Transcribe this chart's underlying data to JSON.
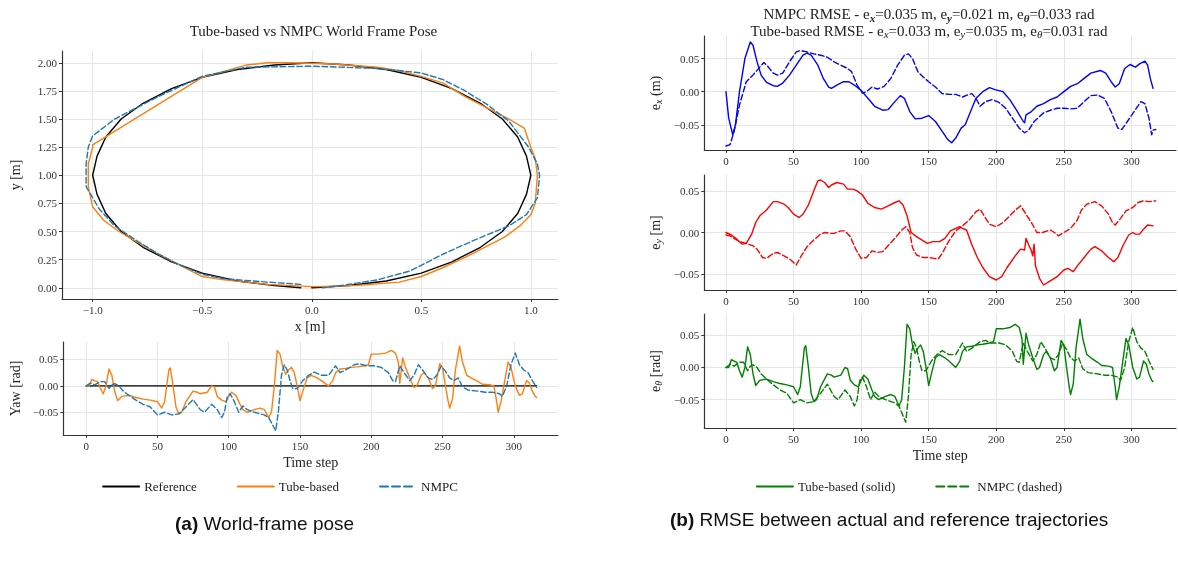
{
  "chart_data": [
    {
      "type": "line",
      "title": "Tube-based vs NMPC World Frame Pose",
      "xlabel": "x [m]",
      "ylabel": "y [m]",
      "marker": "none",
      "grid": true,
      "xlim": [
        -1.14,
        1.124
      ],
      "xticks": [
        {
          "value": -1,
          "label": "−1.0"
        },
        {
          "value": -0.5,
          "label": "−0.5"
        },
        {
          "value": 0,
          "label": "0.0"
        },
        {
          "value": 0.5,
          "label": "0.5"
        },
        {
          "value": 1,
          "label": "1.0"
        }
      ],
      "ylim": [
        -0.1,
        2.105
      ],
      "yticks": [
        {
          "value": 0,
          "label": "0.00"
        },
        {
          "value": 0.25,
          "label": "0.25"
        },
        {
          "value": 0.5,
          "label": "0.50"
        },
        {
          "value": 0.75,
          "label": "0.75"
        },
        {
          "value": 1,
          "label": "1.00"
        },
        {
          "value": 1.25,
          "label": "1.25"
        },
        {
          "value": 1.5,
          "label": "1.50"
        },
        {
          "value": 1.75,
          "label": "1.75"
        },
        {
          "value": 2,
          "label": "2.00"
        }
      ],
      "series": [
        {
          "color": "#000000",
          "line_style": "solid",
          "x": [
            0,
            0.17,
            0.34,
            0.5,
            0.64,
            0.77,
            0.87,
            0.94,
            0.98,
            1,
            0.98,
            0.94,
            0.87,
            0.77,
            0.64,
            0.5,
            0.34,
            0.17,
            0,
            -0.17,
            -0.34,
            -0.5,
            -0.64,
            -0.77,
            -0.87,
            -0.94,
            -0.98,
            -1,
            -0.98,
            -0.94,
            -0.87,
            -0.77,
            -0.64,
            -0.5,
            -0.34,
            -0.17,
            -0.05
          ],
          "values": [
            0,
            0.02,
            0.06,
            0.13,
            0.23,
            0.36,
            0.5,
            0.66,
            0.83,
            1,
            1.17,
            1.34,
            1.5,
            1.64,
            1.77,
            1.87,
            1.94,
            1.98,
            2,
            1.98,
            1.94,
            1.87,
            1.77,
            1.64,
            1.5,
            1.34,
            1.17,
            1,
            0.83,
            0.66,
            0.5,
            0.36,
            0.23,
            0.13,
            0.06,
            0.02,
            0.0
          ]
        },
        {
          "color": "#ff7f0e",
          "line_style": "solid",
          "x": [
            0.02,
            0.2,
            0.4,
            0.5,
            0.6,
            0.7,
            0.8,
            0.88,
            0.95,
            1.0,
            1.02,
            1.03,
            1.02,
            1.0,
            0.97,
            0.9,
            0.8,
            0.7,
            0.6,
            0.5,
            0.4,
            0.3,
            0.1,
            -0.1,
            -0.2,
            -0.3,
            -0.5,
            -0.75,
            -1.0,
            -1.0,
            -1.02,
            -1.02,
            -1.0,
            -0.95,
            -0.88,
            -0.8,
            -0.7,
            -0.6,
            -0.5,
            -0.4,
            -0.2,
            0,
            0.05
          ],
          "values": [
            0.01,
            0.02,
            0.05,
            0.1,
            0.18,
            0.27,
            0.37,
            0.45,
            0.55,
            0.65,
            0.75,
            1.0,
            1.15,
            1.25,
            1.42,
            1.5,
            1.6,
            1.7,
            1.82,
            1.88,
            1.93,
            1.96,
            1.99,
            2.0,
            2.0,
            1.98,
            1.87,
            1.57,
            1.27,
            1.25,
            1.1,
            0.9,
            0.72,
            0.6,
            0.5,
            0.41,
            0.3,
            0.2,
            0.1,
            0.07,
            0.03,
            0.01,
            0.01
          ]
        },
        {
          "color": "#1f77b4",
          "line_style": "dashed",
          "x": [
            -0.05,
            -0.2,
            -0.4,
            -0.5,
            -0.6,
            -0.7,
            -0.8,
            -0.9,
            -0.97,
            -1.03,
            -1.03,
            -1.02,
            -1.0,
            -0.9,
            -0.7,
            -0.5,
            -0.3,
            0,
            0.3,
            0.5,
            0.6,
            0.7,
            0.8,
            0.9,
            0.99,
            1.03,
            1.04,
            1.03,
            0.98,
            0.9,
            0.75,
            0.6,
            0.45,
            0.3,
            0.1,
            0.05
          ],
          "values": [
            0.03,
            0.05,
            0.08,
            0.12,
            0.2,
            0.3,
            0.42,
            0.55,
            0.7,
            0.9,
            1.1,
            1.25,
            1.35,
            1.5,
            1.7,
            1.88,
            1.96,
            1.97,
            1.95,
            1.91,
            1.85,
            1.75,
            1.63,
            1.48,
            1.25,
            1.1,
            1.0,
            0.8,
            0.65,
            0.55,
            0.43,
            0.3,
            0.15,
            0.07,
            0.01,
            0.0
          ]
        }
      ]
    },
    {
      "type": "line",
      "xlabel": "Time step",
      "ylabel": "Yaw [rad]",
      "marker": "none",
      "grid": true,
      "legend": "bottom",
      "annotations": [
        "(a) World-frame pose"
      ],
      "xlim": [
        -16,
        331
      ],
      "xticks": [
        0,
        50,
        100,
        150,
        200,
        250,
        300
      ],
      "ylim": [
        -0.093,
        0.083
      ],
      "yticks": [
        {
          "value": -0.05,
          "label": "−0.05"
        },
        {
          "value": 0,
          "label": "0.00"
        },
        {
          "value": 0.05,
          "label": "0.05"
        }
      ],
      "series": [
        {
          "name": "Reference",
          "color": "#000000",
          "line_style": "solid",
          "x": [
            0,
            316
          ],
          "values": [
            0,
            0
          ]
        },
        {
          "name": "Tube-based",
          "color": "#ff7f0e",
          "line_style": "solid",
          "x": [
            0,
            2,
            4,
            6,
            8,
            10,
            12,
            14,
            16,
            18,
            20,
            22,
            25,
            30,
            35,
            40,
            45,
            50,
            53,
            55,
            58,
            59,
            61,
            63,
            65,
            67,
            70,
            75,
            78,
            80,
            85,
            88,
            90,
            92,
            95,
            98,
            100,
            102,
            105,
            108,
            110,
            113,
            118,
            122,
            125,
            128,
            130,
            132,
            134,
            136,
            138,
            140,
            142,
            144,
            146,
            148,
            150,
            152,
            155,
            158,
            162,
            165,
            170,
            173,
            175,
            178,
            182,
            186,
            190,
            195,
            198,
            200,
            205,
            210,
            214,
            217,
            219,
            220,
            222,
            224,
            227,
            230,
            232,
            235,
            237,
            240,
            243,
            245,
            248,
            250,
            252,
            254,
            255,
            257,
            259,
            262,
            264,
            267,
            270,
            275,
            278,
            283,
            286,
            288,
            289,
            291,
            293,
            296,
            298,
            301,
            304,
            306,
            309,
            311,
            313,
            315,
            316
          ],
          "values": [
            0,
            0,
            0.012,
            0.01,
            0.008,
            -0.005,
            -0.015,
            0,
            0.032,
            0.02,
            -0.01,
            -0.028,
            -0.02,
            -0.018,
            -0.022,
            -0.025,
            -0.027,
            -0.03,
            -0.042,
            -0.03,
            0.03,
            0.034,
            0,
            -0.04,
            -0.053,
            -0.05,
            -0.03,
            -0.01,
            -0.012,
            -0.015,
            -0.012,
            0,
            -0.002,
            -0.02,
            -0.027,
            -0.03,
            -0.02,
            -0.012,
            -0.018,
            -0.035,
            -0.045,
            -0.05,
            -0.045,
            -0.042,
            -0.045,
            -0.06,
            -0.05,
            0,
            0.067,
            0.06,
            0.035,
            0.022,
            0.03,
            0.035,
            0.025,
            0,
            -0.028,
            -0.01,
            0.015,
            0.02,
            0.015,
            0.01,
            0,
            0.01,
            0.025,
            0.032,
            0.033,
            0.035,
            0.036,
            0.038,
            0.04,
            0.06,
            0.06,
            0.062,
            0.067,
            0.062,
            0.045,
            0.005,
            0.053,
            0.035,
            0.015,
            -0.003,
            0,
            0.02,
            0.025,
            0.015,
            -0.005,
            0,
            0.042,
            0.035,
            0,
            -0.03,
            -0.042,
            -0.025,
            0.03,
            0.075,
            0.045,
            0.02,
            0.015,
            0.008,
            0.003,
            0.002,
            0,
            -0.03,
            -0.05,
            -0.03,
            0,
            0.045,
            0.035,
            0,
            -0.018,
            -0.015,
            0.01,
            0.005,
            -0.01,
            -0.02,
            -0.022
          ]
        },
        {
          "name": "NMPC",
          "color": "#1f77b4",
          "line_style": "dashed",
          "x": [
            0,
            3,
            6,
            10,
            13,
            16,
            18,
            20,
            23,
            26,
            30,
            35,
            40,
            45,
            50,
            55,
            60,
            65,
            70,
            75,
            80,
            83,
            88,
            92,
            95,
            97,
            99,
            101,
            104,
            107,
            110,
            113,
            118,
            125,
            128,
            131,
            133,
            135,
            137,
            139,
            141,
            143,
            145,
            148,
            152,
            156,
            160,
            165,
            170,
            175,
            178,
            182,
            188,
            192,
            196,
            202,
            207,
            212,
            215,
            217,
            220,
            223,
            227,
            230,
            233,
            236,
            240,
            243,
            246,
            249,
            252,
            255,
            258,
            261,
            264,
            268,
            275,
            280,
            285,
            290,
            292,
            295,
            298,
            301,
            304,
            307,
            310,
            313,
            316
          ],
          "values": [
            0,
            0.005,
            0.002,
            0.008,
            0.008,
            -0.005,
            0.002,
            0.004,
            0,
            -0.01,
            -0.018,
            -0.027,
            -0.035,
            -0.04,
            -0.055,
            -0.05,
            -0.055,
            -0.053,
            -0.04,
            -0.026,
            -0.045,
            -0.05,
            -0.035,
            -0.045,
            -0.06,
            -0.05,
            -0.02,
            -0.015,
            -0.03,
            -0.05,
            -0.038,
            -0.045,
            -0.05,
            -0.055,
            -0.06,
            -0.075,
            -0.085,
            -0.045,
            0.02,
            0.04,
            0.03,
            0.01,
            -0.005,
            -0.005,
            0.01,
            0.02,
            0.026,
            0.02,
            0.02,
            0.038,
            0.025,
            0.03,
            0.04,
            0.042,
            0.038,
            0.038,
            0.035,
            0.025,
            0.01,
            0.008,
            0.038,
            0.025,
            0.01,
            0.02,
            0.04,
            0.03,
            0.015,
            0.012,
            0.02,
            0.037,
            0.028,
            0.015,
            0.01,
            0.015,
            -0.002,
            -0.008,
            -0.01,
            -0.012,
            -0.012,
            -0.015,
            -0.02,
            0,
            0.04,
            0.062,
            0.04,
            0.03,
            0.025,
            0.01,
            -0.003
          ]
        }
      ]
    },
    {
      "type": "line",
      "title": "NMPC RMSE - e$_{x}$=0.035 m, e$_{y}$=0.021 m, e$_{θ}$=0.033 rad",
      "subtitle": "Tube-based RMSE - e$_{x}$=0.033 m, e$_{y}$=0.035 m, e$_{θ}$=0.031 rad",
      "ylabel": "e$_{x}$ (m)",
      "marker": "none",
      "grid": true,
      "xlim": [
        -16,
        333
      ],
      "xticks": [
        0,
        50,
        100,
        150,
        200,
        250,
        300
      ],
      "ylim": [
        -0.088,
        0.084
      ],
      "yticks": [
        {
          "value": -0.05,
          "label": "−0.05"
        },
        {
          "value": 0,
          "label": "0.00"
        },
        {
          "value": 0.05,
          "label": "0.05"
        }
      ],
      "series": [
        {
          "color": "#0000ff",
          "line_style": "solid",
          "x": [
            0,
            2,
            5,
            7,
            10,
            14,
            18,
            20,
            23,
            26,
            30,
            35,
            38,
            42,
            47,
            52,
            57,
            60,
            63,
            68,
            72,
            76,
            78,
            82,
            87,
            91,
            95,
            100,
            105,
            110,
            116,
            120,
            125,
            129,
            132,
            136,
            140,
            145,
            150,
            155,
            160,
            164,
            167,
            170,
            174,
            177,
            181,
            185,
            190,
            195,
            199,
            205,
            210,
            215,
            220,
            221,
            222,
            226,
            230,
            235,
            240,
            245,
            250,
            255,
            260,
            265,
            270,
            277,
            281,
            285,
            288,
            291,
            295,
            299,
            303,
            306,
            310,
            312,
            314,
            316
          ],
          "values": [
            0,
            -0.04,
            -0.065,
            -0.05,
            0,
            0.05,
            0.075,
            0.07,
            0.045,
            0.025,
            0.014,
            0.009,
            0.008,
            0.013,
            0.025,
            0.04,
            0.055,
            0.058,
            0.055,
            0.04,
            0.02,
            0.007,
            0.005,
            0.01,
            0.015,
            0.015,
            0.01,
            0.002,
            -0.01,
            -0.022,
            -0.028,
            -0.027,
            -0.015,
            -0.006,
            -0.01,
            -0.03,
            -0.041,
            -0.04,
            -0.036,
            -0.045,
            -0.06,
            -0.072,
            -0.077,
            -0.07,
            -0.055,
            -0.05,
            -0.03,
            -0.01,
            0,
            0.006,
            0.003,
            0,
            -0.012,
            -0.028,
            -0.045,
            -0.047,
            -0.035,
            -0.03,
            -0.022,
            -0.018,
            -0.012,
            -0.008,
            0,
            0.008,
            0.012,
            0.02,
            0.028,
            0.032,
            0.028,
            0.015,
            0.007,
            0.012,
            0.035,
            0.041,
            0.037,
            0.042,
            0.046,
            0.04,
            0.02,
            0.005
          ]
        },
        {
          "color": "#0000ff",
          "line_style": "dashed",
          "x": [
            0,
            3,
            6,
            10,
            15,
            20,
            25,
            28,
            31,
            35,
            38,
            42,
            47,
            52,
            55,
            60,
            65,
            70,
            75,
            80,
            85,
            90,
            93,
            97,
            101,
            104,
            108,
            112,
            117,
            122,
            127,
            132,
            135,
            138,
            142,
            146,
            150,
            155,
            160,
            165,
            170,
            175,
            180,
            182,
            185,
            188,
            192,
            197,
            202,
            207,
            212,
            217,
            221,
            224,
            228,
            235,
            240,
            245,
            250,
            255,
            260,
            265,
            270,
            275,
            280,
            285,
            290,
            293,
            297,
            302,
            307,
            310,
            313,
            315,
            316,
            318
          ],
          "values": [
            -0.082,
            -0.08,
            -0.06,
            -0.02,
            0.015,
            0.025,
            0.037,
            0.044,
            0.038,
            0.028,
            0.025,
            0.028,
            0.045,
            0.06,
            0.062,
            0.06,
            0.057,
            0.055,
            0.052,
            0.045,
            0.04,
            0.035,
            0.03,
            0.01,
            -0.002,
            0,
            0.007,
            0.004,
            0.008,
            0.02,
            0.04,
            0.055,
            0.057,
            0.05,
            0.03,
            0.022,
            0.015,
            0.007,
            -0.003,
            -0.004,
            -0.004,
            -0.008,
            -0.004,
            -0.003,
            -0.01,
            -0.022,
            -0.015,
            -0.012,
            -0.016,
            -0.025,
            -0.04,
            -0.055,
            -0.062,
            -0.058,
            -0.045,
            -0.032,
            -0.028,
            -0.025,
            -0.025,
            -0.026,
            -0.025,
            -0.015,
            -0.006,
            -0.005,
            -0.01,
            -0.03,
            -0.055,
            -0.057,
            -0.045,
            -0.03,
            -0.015,
            -0.018,
            -0.04,
            -0.065,
            -0.058,
            -0.057
          ]
        }
      ]
    },
    {
      "type": "line",
      "ylabel": "e$_{y}$ [m]",
      "marker": "none",
      "grid": true,
      "xlim": [
        -16,
        333
      ],
      "xticks": [
        0,
        50,
        100,
        150,
        200,
        250,
        300
      ],
      "ylim": [
        -0.069,
        0.069
      ],
      "yticks": [
        {
          "value": -0.05,
          "label": "−0.05"
        },
        {
          "value": 0,
          "label": "0.00"
        },
        {
          "value": 0.05,
          "label": "0.05"
        }
      ],
      "series": [
        {
          "color": "#ff0000",
          "line_style": "solid",
          "x": [
            0,
            4,
            8,
            12,
            15,
            19,
            22,
            25,
            30,
            35,
            38,
            43,
            46,
            50,
            53,
            54,
            57,
            61,
            65,
            68,
            70,
            73,
            76,
            78,
            82,
            87,
            90,
            94,
            97,
            101,
            105,
            110,
            115,
            120,
            125,
            128,
            131,
            134,
            137,
            141,
            146,
            149,
            153,
            158,
            162,
            166,
            170,
            173,
            175,
            178,
            182,
            186,
            190,
            195,
            200,
            204,
            208,
            214,
            218,
            221,
            222,
            224,
            226,
            227,
            228,
            229,
            232,
            235,
            240,
            245,
            250,
            253,
            257,
            260,
            265,
            270,
            273,
            278,
            283,
            287,
            290,
            294,
            298,
            301,
            303,
            306,
            309,
            312,
            316
          ],
          "values": [
            0,
            -0.003,
            -0.008,
            -0.014,
            -0.013,
            -0.002,
            0.012,
            0.02,
            0.027,
            0.037,
            0.037,
            0.034,
            0.03,
            0.022,
            0.019,
            0.018,
            0.022,
            0.033,
            0.05,
            0.062,
            0.063,
            0.06,
            0.054,
            0.057,
            0.06,
            0.058,
            0.052,
            0.052,
            0.05,
            0.045,
            0.035,
            0.03,
            0.028,
            0.032,
            0.036,
            0.038,
            0.033,
            0.02,
            0,
            -0.005,
            -0.01,
            -0.013,
            -0.011,
            -0.011,
            -0.007,
            0.002,
            0.005,
            0.007,
            0.005,
            0.003,
            -0.015,
            -0.03,
            -0.042,
            -0.053,
            -0.057,
            -0.053,
            -0.042,
            -0.028,
            -0.02,
            -0.021,
            -0.007,
            -0.015,
            -0.022,
            -0.028,
            -0.014,
            -0.04,
            -0.055,
            -0.063,
            -0.058,
            -0.053,
            -0.045,
            -0.043,
            -0.047,
            -0.04,
            -0.03,
            -0.02,
            -0.017,
            -0.022,
            -0.03,
            -0.035,
            -0.03,
            -0.015,
            -0.003,
            0,
            -0.002,
            -0.002,
            0.004,
            0.009,
            0.008
          ]
        },
        {
          "color": "#ff0000",
          "line_style": "dashed",
          "x": [
            0,
            3,
            6,
            10,
            15,
            20,
            23,
            27,
            30,
            35,
            38,
            43,
            48,
            52,
            55,
            60,
            65,
            70,
            73,
            77,
            80,
            85,
            88,
            92,
            96,
            100,
            104,
            108,
            112,
            116,
            121,
            126,
            130,
            133,
            136,
            138,
            141,
            146,
            150,
            154,
            157,
            160,
            165,
            170,
            175,
            180,
            185,
            188,
            191,
            195,
            200,
            205,
            210,
            215,
            218,
            222,
            226,
            230,
            234,
            240,
            243,
            246,
            250,
            255,
            260,
            263,
            267,
            273,
            278,
            283,
            286,
            288,
            292,
            296,
            301,
            305,
            309,
            313,
            318
          ],
          "values": [
            -0.003,
            -0.004,
            -0.007,
            -0.011,
            -0.013,
            -0.016,
            -0.02,
            -0.03,
            -0.031,
            -0.025,
            -0.024,
            -0.028,
            -0.033,
            -0.039,
            -0.03,
            -0.017,
            -0.009,
            -0.002,
            0,
            -0.001,
            -0.001,
            0.002,
            0.002,
            -0.005,
            -0.02,
            -0.031,
            -0.03,
            -0.022,
            -0.024,
            -0.023,
            -0.014,
            -0.005,
            0.003,
            0.007,
            0,
            -0.018,
            -0.027,
            -0.03,
            -0.03,
            -0.031,
            -0.032,
            -0.025,
            -0.01,
            0.002,
            0.008,
            0.015,
            0.025,
            0.028,
            0.02,
            0.01,
            0.007,
            0.012,
            0.02,
            0.028,
            0.032,
            0.022,
            0.012,
            0,
            0,
            0.003,
            0,
            -0.004,
            0,
            0.005,
            0.015,
            0.027,
            0.034,
            0.037,
            0.032,
            0.022,
            0.012,
            0.009,
            0.017,
            0.026,
            0.03,
            0.036,
            0.038,
            0.037,
            0.038
          ]
        }
      ]
    },
    {
      "type": "line",
      "xlabel": "Time step",
      "ylabel": "e$_{θ}$ [rad]",
      "marker": "none",
      "grid": true,
      "legend": "bottom",
      "annotations": [
        "(b) RMSE between actual and reference trajectories"
      ],
      "xlim": [
        -16,
        333
      ],
      "xticks": [
        0,
        50,
        100,
        150,
        200,
        250,
        300
      ],
      "ylim": [
        -0.094,
        0.083
      ],
      "yticks": [
        {
          "value": -0.05,
          "label": "−0.05"
        },
        {
          "value": 0,
          "label": "0.00"
        },
        {
          "value": 0.05,
          "label": "0.05"
        }
      ],
      "series": [
        {
          "name": "Tube-based (solid)",
          "color": "#008000",
          "line_style": "solid",
          "x": [
            0,
            2,
            4,
            6,
            8,
            10,
            12,
            14,
            16,
            18,
            20,
            22,
            25,
            30,
            35,
            40,
            45,
            50,
            53,
            55,
            58,
            59,
            61,
            63,
            65,
            67,
            70,
            75,
            78,
            80,
            85,
            88,
            90,
            92,
            95,
            98,
            100,
            102,
            105,
            108,
            110,
            113,
            118,
            122,
            125,
            128,
            130,
            132,
            134,
            136,
            138,
            140,
            142,
            144,
            146,
            148,
            150,
            152,
            155,
            158,
            162,
            165,
            170,
            173,
            175,
            178,
            182,
            186,
            190,
            195,
            198,
            200,
            205,
            210,
            214,
            217,
            219,
            220,
            222,
            224,
            227,
            230,
            232,
            235,
            237,
            240,
            243,
            245,
            248,
            250,
            252,
            254,
            255,
            257,
            259,
            262,
            264,
            267,
            270,
            275,
            278,
            283,
            286,
            288,
            289,
            291,
            293,
            296,
            298,
            301,
            304,
            306,
            309,
            311,
            313,
            315,
            316
          ],
          "values": [
            0,
            0,
            0.012,
            0.01,
            0.008,
            -0.005,
            -0.015,
            0,
            0.032,
            0.02,
            -0.01,
            -0.028,
            -0.02,
            -0.018,
            -0.022,
            -0.025,
            -0.027,
            -0.03,
            -0.042,
            -0.03,
            0.03,
            0.034,
            0,
            -0.04,
            -0.053,
            -0.05,
            -0.03,
            -0.01,
            -0.012,
            -0.015,
            -0.012,
            0,
            -0.002,
            -0.02,
            -0.027,
            -0.03,
            -0.02,
            -0.012,
            -0.018,
            -0.035,
            -0.045,
            -0.05,
            -0.045,
            -0.042,
            -0.045,
            -0.06,
            -0.05,
            0,
            0.067,
            0.06,
            0.035,
            0.022,
            0.03,
            0.035,
            0.025,
            0,
            -0.028,
            -0.01,
            0.015,
            0.02,
            0.015,
            0.01,
            0,
            0.01,
            0.025,
            0.032,
            0.033,
            0.035,
            0.036,
            0.038,
            0.04,
            0.06,
            0.06,
            0.062,
            0.067,
            0.062,
            0.045,
            0.005,
            0.053,
            0.035,
            0.015,
            -0.003,
            0,
            0.02,
            0.025,
            0.015,
            -0.005,
            0,
            0.042,
            0.035,
            0,
            -0.03,
            -0.042,
            -0.025,
            0.03,
            0.075,
            0.045,
            0.02,
            0.015,
            0.008,
            0.003,
            0.002,
            0,
            -0.03,
            -0.05,
            -0.03,
            0,
            0.045,
            0.035,
            0,
            -0.018,
            -0.015,
            0.01,
            0.005,
            -0.01,
            -0.02,
            -0.022
          ]
        },
        {
          "name": "NMPC (dashed)",
          "color": "#008000",
          "line_style": "dashed",
          "x": [
            0,
            3,
            6,
            10,
            13,
            16,
            18,
            20,
            23,
            26,
            30,
            35,
            40,
            45,
            50,
            55,
            60,
            65,
            70,
            75,
            80,
            83,
            88,
            92,
            95,
            97,
            99,
            101,
            104,
            107,
            110,
            113,
            118,
            125,
            128,
            131,
            133,
            135,
            137,
            139,
            141,
            143,
            145,
            148,
            152,
            156,
            160,
            165,
            170,
            175,
            178,
            182,
            188,
            192,
            196,
            202,
            207,
            212,
            215,
            217,
            220,
            223,
            227,
            230,
            233,
            236,
            240,
            243,
            246,
            249,
            252,
            255,
            258,
            261,
            264,
            268,
            275,
            280,
            285,
            290,
            292,
            295,
            298,
            301,
            304,
            307,
            310,
            313,
            316
          ],
          "values": [
            0,
            0.005,
            0.002,
            0.008,
            0.008,
            -0.005,
            0.002,
            0.004,
            0,
            -0.01,
            -0.018,
            -0.027,
            -0.035,
            -0.04,
            -0.055,
            -0.05,
            -0.055,
            -0.053,
            -0.04,
            -0.026,
            -0.045,
            -0.05,
            -0.035,
            -0.045,
            -0.06,
            -0.05,
            -0.02,
            -0.015,
            -0.03,
            -0.05,
            -0.038,
            -0.045,
            -0.05,
            -0.055,
            -0.06,
            -0.075,
            -0.085,
            -0.045,
            0.02,
            0.04,
            0.03,
            0.01,
            -0.005,
            -0.005,
            0.01,
            0.02,
            0.026,
            0.02,
            0.02,
            0.038,
            0.025,
            0.03,
            0.04,
            0.042,
            0.038,
            0.038,
            0.035,
            0.025,
            0.01,
            0.008,
            0.038,
            0.025,
            0.01,
            0.02,
            0.04,
            0.03,
            0.015,
            0.012,
            0.02,
            0.037,
            0.028,
            0.015,
            0.01,
            0.015,
            -0.002,
            -0.008,
            -0.01,
            -0.012,
            -0.012,
            -0.015,
            -0.02,
            0,
            0.04,
            0.062,
            0.04,
            0.03,
            0.025,
            0.01,
            -0.003
          ]
        }
      ]
    }
  ]
}
